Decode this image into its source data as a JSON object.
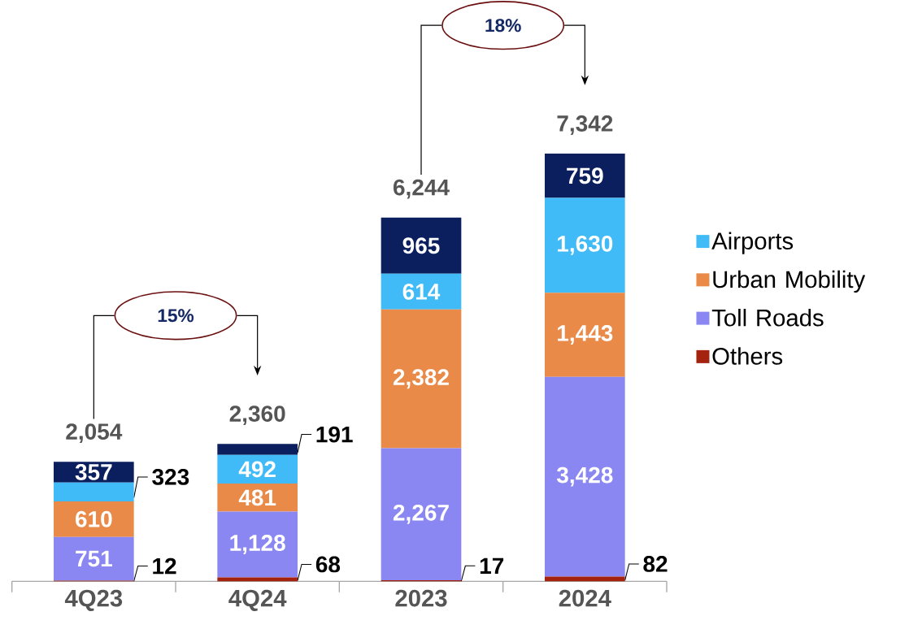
{
  "chart_data": {
    "type": "bar",
    "stacked": true,
    "categories": [
      "4Q23",
      "4Q24",
      "2023",
      "2024"
    ],
    "series": [
      {
        "name": "Others",
        "color": "#a3230f",
        "values": [
          12,
          68,
          17,
          82
        ],
        "value_labels": [
          "12",
          "68",
          "17",
          "82"
        ]
      },
      {
        "name": "Toll Roads",
        "color": "#8a87f2",
        "values": [
          751,
          1128,
          2267,
          3428
        ],
        "value_labels": [
          "751",
          "1,128",
          "2,267",
          "3,428"
        ]
      },
      {
        "name": "Urban Mobility",
        "color": "#e98a48",
        "values": [
          610,
          481,
          2382,
          1443
        ],
        "value_labels": [
          "610",
          "481",
          "2,382",
          "1,443"
        ]
      },
      {
        "name": "Airports",
        "color": "#40bbf7",
        "values": [
          323,
          492,
          614,
          1630
        ],
        "value_labels": [
          "323",
          "492",
          "614",
          "1,630"
        ]
      },
      {
        "color": "#0b1f5e",
        "values": [
          357,
          191,
          965,
          759
        ],
        "value_labels": [
          "357",
          "191",
          "965",
          "759"
        ]
      }
    ],
    "totals": [
      "2,054",
      "2,360",
      "6,244",
      "7,342"
    ],
    "annotations": [
      "15%",
      "18%"
    ],
    "legend": "right"
  }
}
